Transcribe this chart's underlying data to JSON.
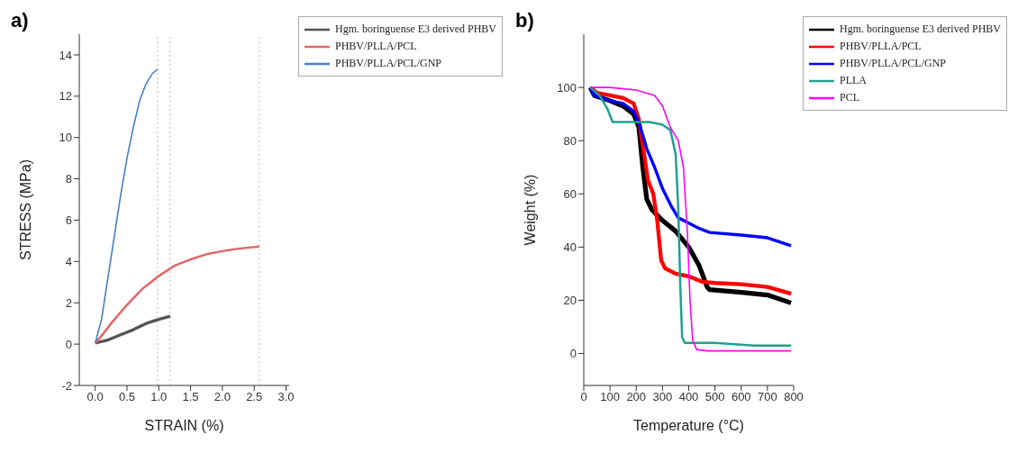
{
  "chart_data": [
    {
      "type": "line",
      "title": "a)",
      "xlabel": "STRAIN (%)",
      "ylabel": "STRESS (MPa)",
      "xlim": [
        -0.25,
        3.05
      ],
      "xticks": [
        {
          "value": 0,
          "label": "0.0"
        },
        0.5,
        {
          "value": 1,
          "label": "1.0"
        },
        1.5,
        {
          "value": 2,
          "label": "2.0"
        },
        2.5,
        {
          "value": 3,
          "label": "3.0"
        }
      ],
      "ylim": [
        -2,
        15
      ],
      "yticks": [
        -2,
        0,
        2,
        4,
        6,
        8,
        10,
        12,
        14
      ],
      "grid": false,
      "legend": "top right",
      "marker": "none",
      "line_style": "solid",
      "series": [
        {
          "name": "Hgm. boringuense E3 derived PHBV",
          "color": "#555555",
          "x": [
            0,
            0.2,
            0.4,
            0.6,
            0.8,
            1.0,
            1.18
          ],
          "values": [
            0.05,
            0.2,
            0.45,
            0.7,
            1.0,
            1.2,
            1.35
          ]
        },
        {
          "name": "PHBV/PLLA/PCL",
          "color": "#e06666",
          "x": [
            0,
            0.1,
            0.25,
            0.5,
            0.75,
            1.0,
            1.25,
            1.5,
            1.75,
            2.0,
            2.25,
            2.58
          ],
          "values": [
            0.05,
            0.4,
            1.0,
            1.9,
            2.7,
            3.3,
            3.8,
            4.1,
            4.35,
            4.5,
            4.62,
            4.72
          ]
        },
        {
          "name": "PHBV/PLLA/PCL/GNP",
          "color": "#4a7ec8",
          "x": [
            0,
            0.1,
            0.2,
            0.3,
            0.4,
            0.5,
            0.6,
            0.7,
            0.8,
            0.9,
            0.98
          ],
          "values": [
            0.05,
            1.2,
            3.2,
            5.2,
            7.2,
            9.0,
            10.5,
            11.8,
            12.6,
            13.1,
            13.3
          ]
        }
      ],
      "ref_lines": [
        {
          "axis": "x",
          "value": 0.98,
          "color": "#bbbbbb",
          "line_style": "dotted"
        },
        {
          "axis": "x",
          "value": 1.18,
          "color": "#bbbbbb",
          "line_style": "dotted"
        },
        {
          "axis": "x",
          "value": 2.58,
          "color": "#bbbbbb",
          "line_style": "dotted"
        }
      ]
    },
    {
      "type": "line",
      "title": "b)",
      "xlabel": "Temperature (°C)",
      "ylabel": "Weight (%)",
      "xlim": [
        0,
        800
      ],
      "xticks": [
        0,
        100,
        200,
        300,
        400,
        500,
        600,
        700,
        800
      ],
      "ylim": [
        -12,
        120
      ],
      "yticks": [
        0,
        20,
        40,
        60,
        80,
        100
      ],
      "grid": false,
      "legend": "top right",
      "marker": "none",
      "line_style": "solid",
      "series": [
        {
          "name": "Hgm. boringuense E3 derived PHBV",
          "color": "#000000",
          "x": [
            25,
            40,
            100,
            150,
            190,
            210,
            225,
            240,
            260,
            300,
            350,
            400,
            440,
            470,
            480,
            600,
            700,
            790
          ],
          "values": [
            100,
            97,
            95,
            93,
            90,
            85,
            70,
            58,
            54,
            50,
            46,
            40,
            33,
            25,
            24,
            23,
            22,
            19
          ]
        },
        {
          "name": "PHBV/PLLA/PCL",
          "color": "#ff0000",
          "x": [
            25,
            50,
            100,
            150,
            190,
            210,
            230,
            245,
            265,
            280,
            295,
            310,
            350,
            400,
            450,
            500,
            600,
            700,
            790
          ],
          "values": [
            100,
            98,
            97,
            96,
            94,
            88,
            75,
            65,
            60,
            50,
            35,
            32,
            30,
            29,
            27,
            26.5,
            26,
            25,
            22.5
          ]
        },
        {
          "name": "PHBV/PLLA/PCL/GNP",
          "color": "#0000ff",
          "x": [
            25,
            40,
            100,
            150,
            190,
            210,
            240,
            270,
            300,
            330,
            360,
            400,
            440,
            480,
            600,
            700,
            790
          ],
          "values": [
            100,
            97,
            95,
            94,
            91,
            87,
            77,
            70,
            62,
            56,
            51,
            49,
            47,
            45.5,
            44.5,
            43.5,
            40.5
          ]
        },
        {
          "name": "PLLA",
          "color": "#20a090",
          "x": [
            25,
            60,
            90,
            110,
            200,
            250,
            300,
            330,
            350,
            360,
            368,
            375,
            385,
            500,
            650,
            790
          ],
          "values": [
            100,
            97,
            92,
            87,
            87,
            87,
            86,
            84,
            75,
            55,
            25,
            6,
            4,
            4,
            3,
            3
          ]
        },
        {
          "name": "PCL",
          "color": "#ff00ff",
          "x": [
            25,
            100,
            200,
            270,
            300,
            330,
            360,
            380,
            395,
            405,
            415,
            430,
            470,
            790
          ],
          "values": [
            100,
            100,
            99,
            97,
            93,
            85,
            80,
            70,
            45,
            20,
            5,
            1.5,
            1,
            1
          ]
        }
      ]
    }
  ]
}
